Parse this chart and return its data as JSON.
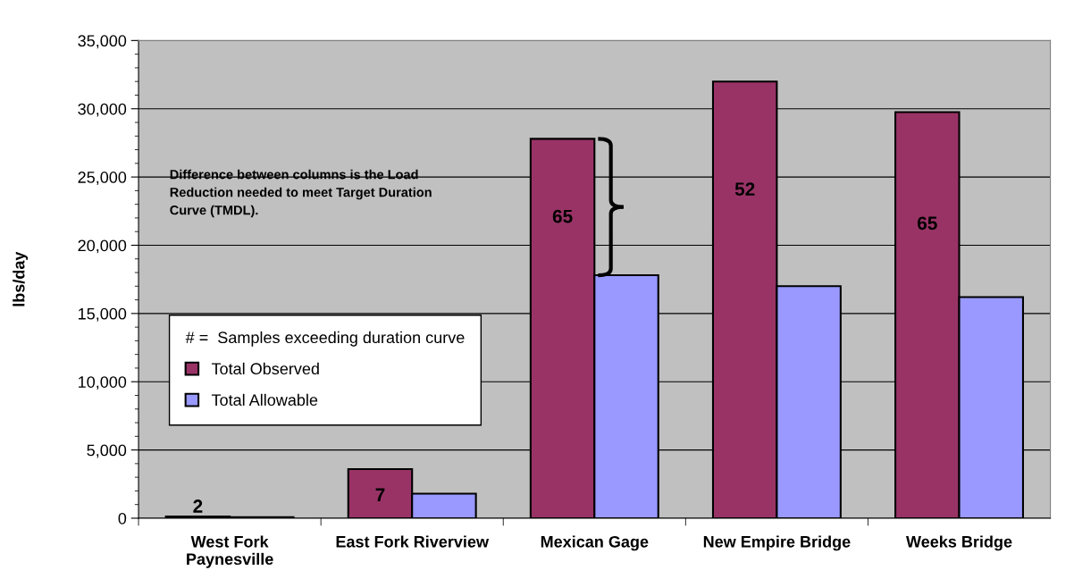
{
  "chart_data": {
    "type": "bar",
    "ylabel": "lbs/day",
    "categories": [
      "West Fork\nPaynesville",
      "East Fork Riverview",
      "Mexican Gage",
      "New Empire Bridge",
      "Weeks Bridge"
    ],
    "series": [
      {
        "name": "Total Observed",
        "color": "#993366",
        "values": [
          130,
          3600,
          27800,
          32000,
          29750
        ]
      },
      {
        "name": "Total Allowable",
        "color": "#9999ff",
        "values": [
          80,
          1800,
          17800,
          17000,
          16200
        ]
      }
    ],
    "legend_title": "# =  Samples exceeding duration curve",
    "legend": "left",
    "annotations": [
      "Difference between columns is the Load\nReduction needed to meet Target Duration\nCurve (TMDL).",
      {
        "text": "2",
        "x": "West Fork\nPaynesville",
        "y": 130
      },
      {
        "text": "7",
        "x": "East Fork Riverview",
        "y": 1600
      },
      {
        "text": "65",
        "x": "Mexican Gage",
        "y": 22000
      },
      {
        "text": "52",
        "x": "New Empire Bridge",
        "y": 24000
      },
      {
        "text": "65",
        "x": "Weeks Bridge",
        "y": 21500
      }
    ],
    "ylim": [
      0,
      35000
    ],
    "yticks": [
      0,
      {
        "value": 5000,
        "label": "5,000"
      },
      {
        "value": 10000,
        "label": "10,000"
      },
      {
        "value": 15000,
        "label": "15,000"
      },
      {
        "value": 20000,
        "label": "20,000"
      },
      {
        "value": 25000,
        "label": "25,000"
      },
      {
        "value": 30000,
        "label": "30,000"
      },
      {
        "value": 35000,
        "label": "35,000"
      }
    ],
    "grid": "y"
  }
}
